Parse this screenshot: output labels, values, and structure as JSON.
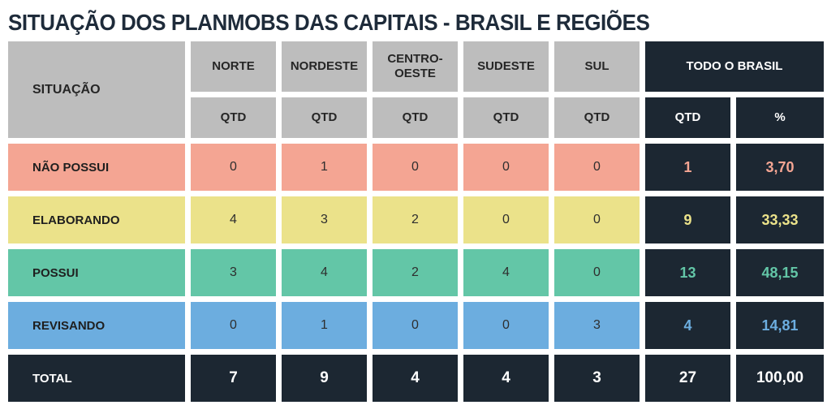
{
  "title": "SITUAÇÃO DOS PLANMOBS DAS CAPITAIS - BRASIL E REGIÕES",
  "chart_data": {
    "type": "table",
    "title": "SITUAÇÃO DOS PLANMOBS DAS CAPITAIS - BRASIL E REGIÕES",
    "column_groups": {
      "situacao": "SITUAÇÃO",
      "regions": [
        "NORTE",
        "NORDESTE",
        "CENTRO-OESTE",
        "SUDESTE",
        "SUL"
      ],
      "brasil": "TODO O BRASIL",
      "qtd": "QTD",
      "pct": "%"
    },
    "rows": [
      {
        "label": "NÃO POSSUI",
        "color": "#f4a593",
        "values": [
          0,
          1,
          0,
          0,
          0
        ],
        "brasil_qtd": "1",
        "brasil_pct": "3,70"
      },
      {
        "label": "ELABORANDO",
        "color": "#ebe28a",
        "values": [
          4,
          3,
          2,
          0,
          0
        ],
        "brasil_qtd": "9",
        "brasil_pct": "33,33"
      },
      {
        "label": "POSSUI",
        "color": "#63c6a7",
        "values": [
          3,
          4,
          2,
          4,
          0
        ],
        "brasil_qtd": "13",
        "brasil_pct": "48,15"
      },
      {
        "label": "REVISANDO",
        "color": "#6caddf",
        "values": [
          0,
          1,
          0,
          0,
          3
        ],
        "brasil_qtd": "4",
        "brasil_pct": "14,81"
      }
    ],
    "total": {
      "label": "TOTAL",
      "values": [
        7,
        9,
        4,
        4,
        3
      ],
      "brasil_qtd": "27",
      "brasil_pct": "100,00"
    }
  },
  "colors": {
    "header_gray": "#bdbdbd",
    "dark_navy": "#1c2732",
    "title_text": "#1e2b3a",
    "background": "#ffffff"
  }
}
